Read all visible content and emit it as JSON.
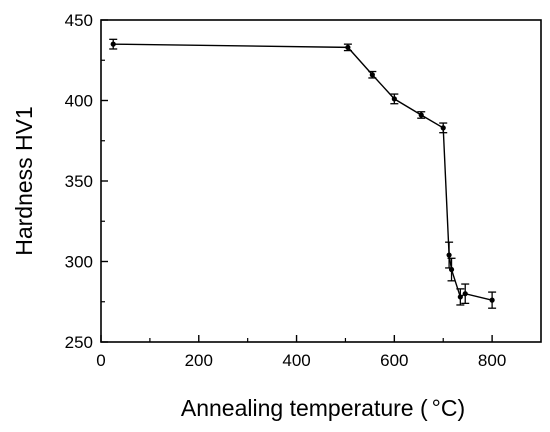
{
  "chart_data": {
    "type": "line",
    "title": "",
    "xlabel": "Annealing temperature (",
    "xlabel_unit": "°C",
    "xlabel_close": ")",
    "ylabel": "Hardness HV1",
    "xlim": [
      0,
      900
    ],
    "ylim": [
      250,
      450
    ],
    "xticks": [
      0,
      200,
      400,
      600,
      800
    ],
    "yticks": [
      250,
      300,
      350,
      400,
      450
    ],
    "xtick_labels": [
      "0",
      "200",
      "400",
      "600",
      "800"
    ],
    "ytick_labels": [
      "250",
      "300",
      "350",
      "400",
      "450"
    ],
    "grid": false,
    "legend": "none",
    "series": [
      {
        "color": "#000000",
        "marker": "dot",
        "x": [
          25,
          505,
          555,
          600,
          655,
          700,
          712,
          717,
          735,
          745,
          800
        ],
        "y": [
          435,
          433,
          416,
          401,
          391,
          383,
          304,
          295,
          278,
          280,
          276
        ],
        "error": [
          3,
          2,
          2,
          3,
          2,
          3,
          8,
          7,
          5,
          6,
          5
        ]
      }
    ]
  }
}
